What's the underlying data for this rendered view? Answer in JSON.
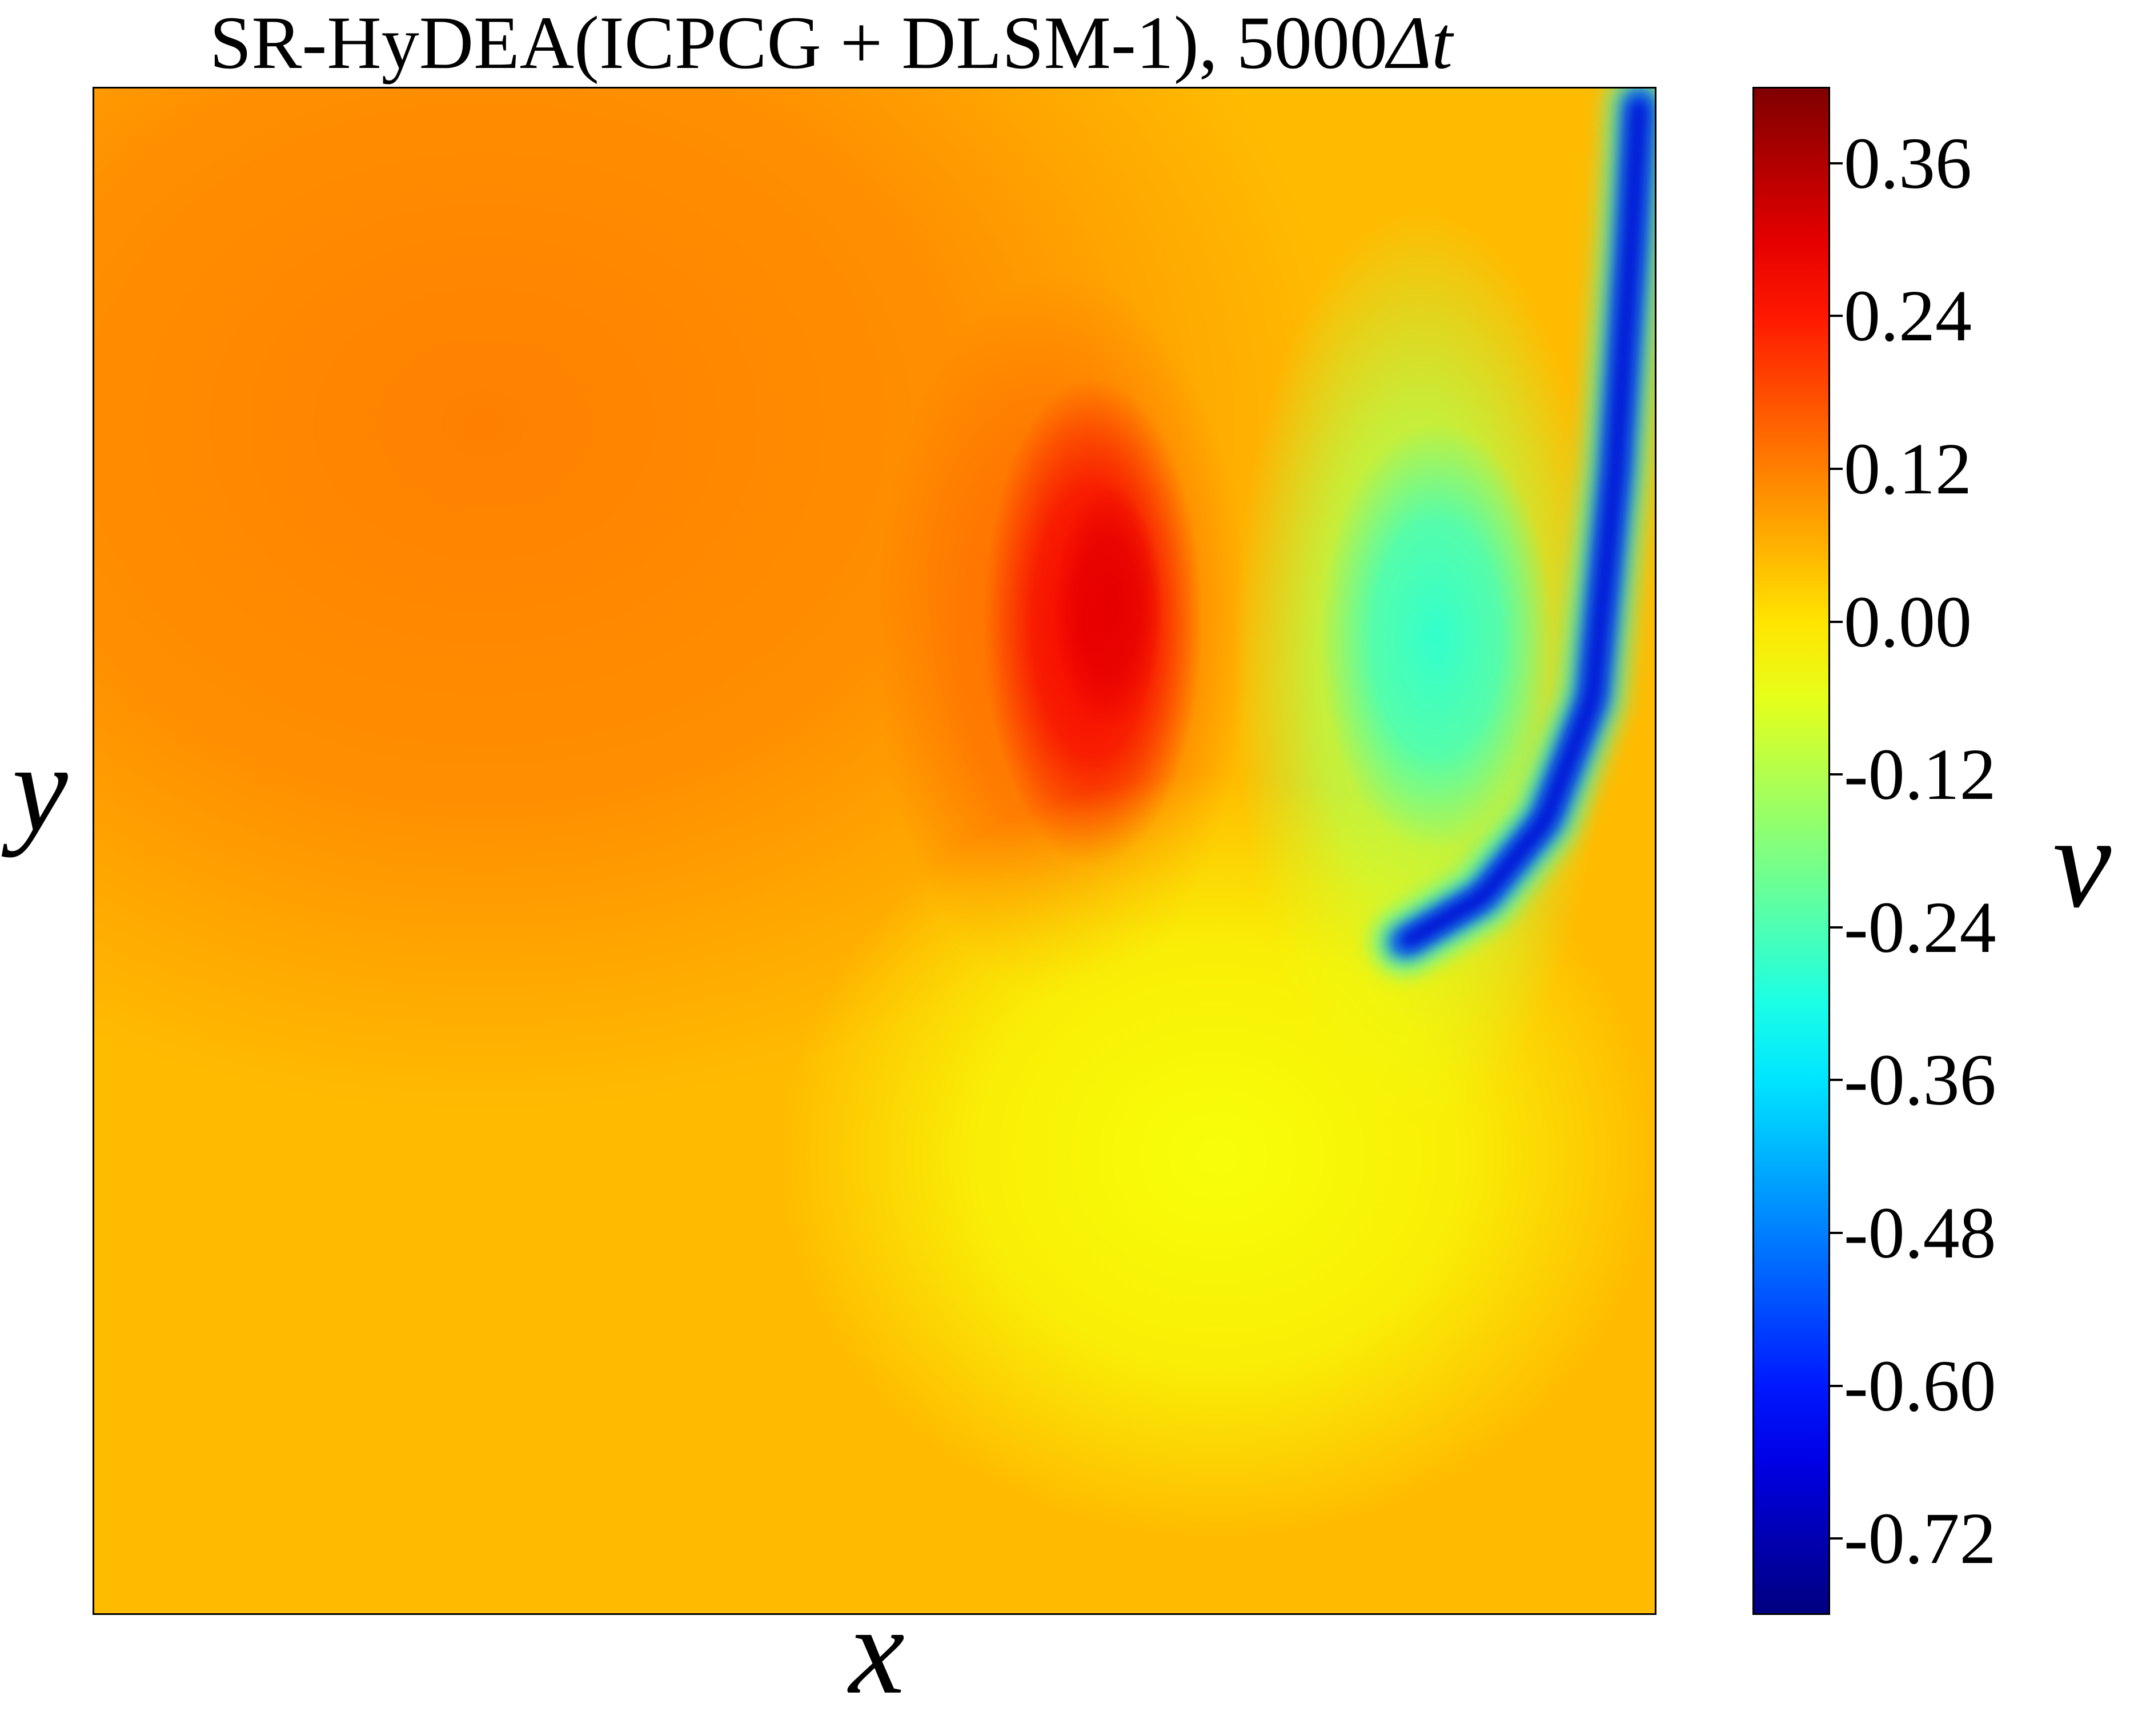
{
  "chart_data": {
    "type": "heatmap",
    "title": "SR-HyDEA(ICPCG + DLSM-1), 5000",
    "title_symbol": "Δt",
    "xlabel": "x",
    "ylabel": "y",
    "colorbar_label": "v",
    "colormap": "jet",
    "vmin": -0.78,
    "vmax": 0.42,
    "colorbar_ticks": [
      "0.36",
      "0.24",
      "0.12",
      "0.00",
      "-0.12",
      "-0.24",
      "-0.36",
      "-0.48",
      "-0.60",
      "-0.72"
    ],
    "xlim": [
      0,
      1
    ],
    "ylim": [
      0,
      1
    ],
    "background_value": 0.05,
    "features": [
      {
        "kind": "background-gradient",
        "x": 0.25,
        "y": 0.78,
        "rx": 0.55,
        "ry": 0.45,
        "value": 0.12
      },
      {
        "kind": "positive-lobe",
        "x": 0.62,
        "y": 0.64,
        "rx": 0.12,
        "ry": 0.24,
        "value": 0.14
      },
      {
        "kind": "positive-core",
        "x": 0.64,
        "y": 0.65,
        "rx": 0.07,
        "ry": 0.16,
        "value": 0.28
      },
      {
        "kind": "positive-peak",
        "x": 0.65,
        "y": 0.66,
        "rx": 0.035,
        "ry": 0.08,
        "value": 0.3
      },
      {
        "kind": "negative-lobe",
        "x": 0.85,
        "y": 0.62,
        "rx": 0.12,
        "ry": 0.3,
        "value": -0.12
      },
      {
        "kind": "negative-core",
        "x": 0.86,
        "y": 0.64,
        "rx": 0.075,
        "ry": 0.14,
        "value": -0.27
      },
      {
        "kind": "lower-right-negative",
        "x": 0.72,
        "y": 0.3,
        "rx": 0.28,
        "ry": 0.25,
        "value": -0.04
      },
      {
        "kind": "right-wall-jet",
        "x": 0.99,
        "y": 0.99,
        "value": -0.72,
        "path_x": [
          0.99,
          0.985,
          0.975,
          0.96,
          0.93,
          0.89,
          0.84
        ],
        "path_y": [
          0.99,
          0.9,
          0.75,
          0.6,
          0.52,
          0.47,
          0.44
        ]
      }
    ]
  }
}
